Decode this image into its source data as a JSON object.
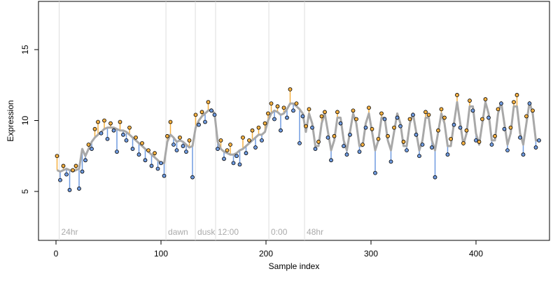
{
  "chart_data": {
    "type": "scatter",
    "xlabel": "Sample index",
    "ylabel": "Expression",
    "xlim": [
      -16.67,
      470
    ],
    "ylim": [
      1.55,
      18.4
    ],
    "xticks": [
      0,
      100,
      200,
      300,
      400
    ],
    "yticks": [
      5,
      10,
      15
    ],
    "above_color": "#f5b041",
    "below_color": "#6f9be0",
    "fit_color": "#a8a8a8",
    "point_stroke": "#000000",
    "annotations": [
      {
        "x": 3,
        "label": "24hr"
      },
      {
        "x": 104.7,
        "label": "dawn"
      },
      {
        "x": 132.7,
        "label": "dusk"
      },
      {
        "x": 152,
        "label": "12:00"
      },
      {
        "x": 202.7,
        "label": "0:00"
      },
      {
        "x": 236.7,
        "label": "48hr"
      }
    ],
    "x": [
      1,
      4,
      7,
      10,
      13,
      16,
      19,
      22,
      25,
      28,
      31,
      34,
      37,
      40,
      43,
      46,
      49,
      52,
      55,
      58,
      61,
      64,
      67,
      70,
      73,
      76,
      79,
      82,
      85,
      88,
      91,
      94,
      97,
      100,
      103,
      106,
      109,
      112,
      115,
      118,
      121,
      124,
      127,
      130,
      133,
      136,
      139,
      142,
      145,
      148,
      151,
      154,
      157,
      160,
      163,
      166,
      169,
      172,
      175,
      178,
      181,
      184,
      187,
      190,
      193,
      196,
      199,
      202,
      205,
      208,
      211,
      214,
      217,
      220,
      223,
      226,
      229,
      232,
      235,
      238,
      241,
      244,
      247,
      250,
      253,
      256,
      259,
      262,
      265,
      268,
      271,
      274,
      277,
      280,
      283,
      286,
      289,
      292,
      295,
      298,
      301,
      304,
      307,
      310,
      313,
      316,
      319,
      322,
      325,
      328,
      331,
      334,
      337,
      340,
      343,
      346,
      349,
      352,
      355,
      358,
      361,
      364,
      367,
      370,
      373,
      376,
      379,
      382,
      385,
      388,
      391,
      394,
      397,
      400,
      403,
      406,
      409,
      412,
      415,
      418,
      421,
      424,
      427,
      430,
      433,
      436,
      439,
      442,
      445,
      448,
      451,
      454,
      457,
      460
    ],
    "series": [
      {
        "name": "points",
        "values": [
          7.5,
          5.8,
          6.8,
          6.2,
          5.1,
          6.5,
          6.8,
          5.2,
          6.4,
          7.2,
          8.3,
          8.0,
          9.4,
          9.9,
          9.1,
          10.0,
          8.7,
          9.8,
          9.3,
          7.8,
          9.9,
          9.0,
          8.6,
          9.5,
          8.0,
          8.8,
          7.6,
          8.4,
          7.2,
          7.9,
          6.8,
          7.7,
          6.6,
          7.0,
          6.1,
          8.9,
          9.9,
          8.3,
          7.9,
          8.8,
          8.2,
          7.8,
          8.6,
          6.0,
          10.4,
          9.7,
          10.6,
          9.9,
          11.3,
          10.7,
          10.4,
          8.0,
          8.6,
          7.3,
          7.9,
          8.3,
          7.0,
          7.5,
          6.9,
          8.8,
          7.7,
          8.6,
          9.3,
          8.1,
          9.5,
          8.6,
          9.8,
          10.5,
          11.2,
          10.1,
          11.0,
          9.3,
          10.9,
          10.2,
          12.2,
          10.7,
          11.2,
          8.4,
          10.3,
          9.6,
          10.8,
          9.5,
          8.0,
          8.5,
          10.3,
          10.6,
          8.8,
          7.2,
          8.9,
          10.6,
          9.8,
          8.2,
          7.6,
          9.0,
          10.7,
          10.1,
          7.8,
          8.3,
          9.5,
          10.9,
          9.4,
          6.3,
          8.7,
          10.5,
          10.1,
          8.9,
          7.1,
          9.5,
          10.2,
          9.6,
          8.5,
          7.9,
          10.1,
          10.4,
          9.0,
          7.5,
          8.3,
          10.6,
          10.4,
          8.1,
          6.0,
          9.3,
          10.8,
          10.2,
          7.6,
          8.7,
          9.7,
          11.8,
          9.5,
          8.4,
          9.3,
          11.4,
          10.7,
          8.6,
          8.5,
          10.1,
          11.5,
          10.2,
          8.3,
          8.9,
          10.8,
          11.2,
          9.4,
          7.9,
          9.5,
          11.3,
          11.8,
          8.8,
          7.6,
          10.3,
          11.2,
          10.7,
          8.1,
          8.6
        ]
      },
      {
        "name": "fit",
        "values": [
          6.5,
          6.4,
          6.5,
          6.6,
          6.5,
          6.4,
          6.5,
          6.6,
          8.0,
          7.5,
          8,
          8.5,
          8.8,
          9,
          9.2,
          9.4,
          9.5,
          9.5,
          9.5,
          9.4,
          9.3,
          9.3,
          9.2,
          9,
          8.8,
          8.6,
          8.4,
          8.2,
          8,
          7.8,
          7.6,
          7.4,
          7.2,
          7,
          7,
          8.5,
          9,
          8.8,
          8.5,
          8.6,
          8.5,
          8.3,
          8.1,
          8.2,
          9.5,
          10,
          10.3,
          10.5,
          10.7,
          10.8,
          10.5,
          8.5,
          8,
          7.8,
          7.7,
          7.6,
          7.6,
          7.7,
          7.9,
          8,
          8.2,
          8.4,
          8.6,
          8.8,
          9,
          9,
          9.2,
          10,
          10.5,
          10.7,
          10.6,
          10.4,
          10.5,
          10.8,
          11.2,
          11.2,
          11,
          10.8,
          10.5,
          9.2,
          10.5,
          9.8,
          8.2,
          8.2,
          9.8,
          10.5,
          9.2,
          7.9,
          8.6,
          10.2,
          10.2,
          8.6,
          7.9,
          9.2,
          10.5,
          9.8,
          8.2,
          8.2,
          9.8,
          10.5,
          9.2,
          7.9,
          8.6,
          10.2,
          10.2,
          8.6,
          7.9,
          9.2,
          10.5,
          9.8,
          8.2,
          8.2,
          9.8,
          10.5,
          9.2,
          7.9,
          8.6,
          10.2,
          10.2,
          8.6,
          7.9,
          9.2,
          10.5,
          9.8,
          8.2,
          8.2,
          9.8,
          11.3,
          9.8,
          8.3,
          9.1,
          11.0,
          11.0,
          9.1,
          8.3,
          9.8,
          11.3,
          10.5,
          8.6,
          8.6,
          10.5,
          11.3,
          9.8,
          8.3,
          9.1,
          11.0,
          11.0,
          9.1,
          8.3,
          9.8,
          11.3,
          10.5,
          8.6,
          8.6
        ]
      }
    ]
  }
}
